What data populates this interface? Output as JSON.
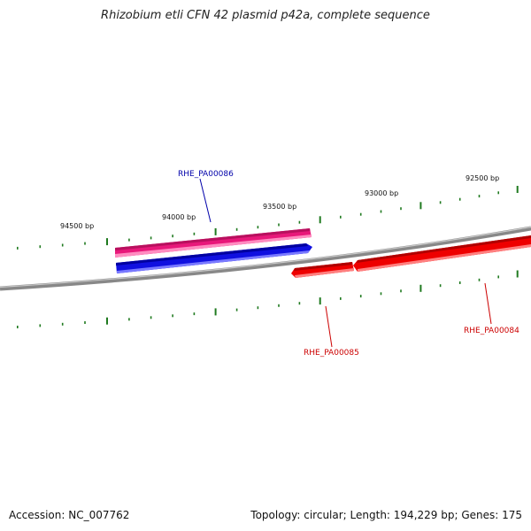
{
  "title": "Rhizobium etli CFN 42 plasmid p42a, complete sequence",
  "footer": {
    "accession": "Accession: NC_007762",
    "summary": "Topology: circular; Length: 194,229 bp; Genes: 175"
  },
  "ruler": {
    "labels": [
      "94500 bp",
      "94000 bp",
      "93500 bp",
      "93000 bp",
      "92500 bp"
    ]
  },
  "genes": [
    {
      "name": "RHE_PA00086",
      "color": "#0000aa",
      "feature_colors": [
        "#e8187a",
        "#1010e0"
      ]
    },
    {
      "name": "RHE_PA00085",
      "color": "#cc0000",
      "feature_colors": [
        "#ee0000"
      ]
    },
    {
      "name": "RHE_PA00084",
      "color": "#cc0000",
      "feature_colors": [
        "#ee0000"
      ]
    }
  ],
  "colors": {
    "backbone": "#888888",
    "ticks": "#1f7a1f"
  }
}
